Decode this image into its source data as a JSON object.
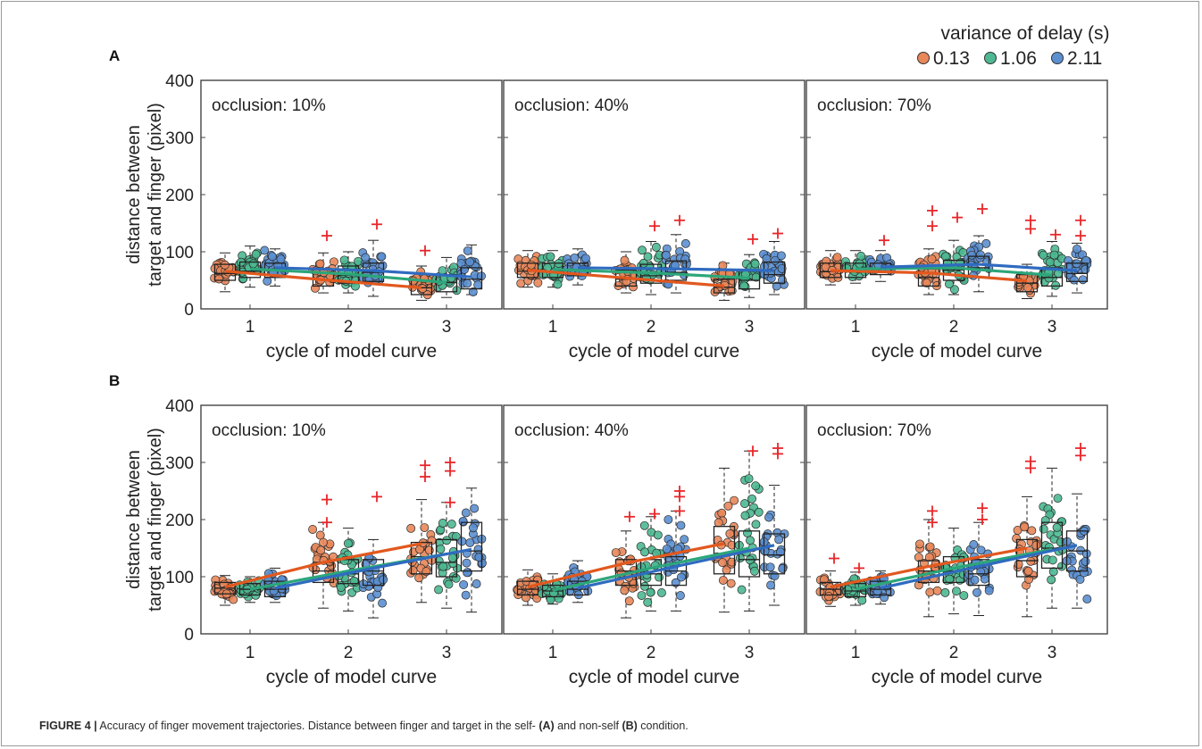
{
  "legend": {
    "title": "variance of delay (s)",
    "entries": [
      {
        "label": "0.13",
        "color": "#e8875a",
        "line_color": "#e2581e"
      },
      {
        "label": "1.06",
        "color": "#4db891",
        "line_color": "#2ca67a"
      },
      {
        "label": "2.11",
        "color": "#5b8fd0",
        "line_color": "#2f6bc0"
      }
    ]
  },
  "outlier_color": "#e8262a",
  "ylabel_lines": [
    "distance between",
    "target and finger (pixel)"
  ],
  "xlabel": "cycle of model curve",
  "caption": {
    "prefix": "FIGURE 4 |",
    "t1": " Accuracy of finger movement trajectories. Distance between finger and target in the self- ",
    "a": "(A)",
    "t2": " and non-self ",
    "b": "(B)",
    "t3": " condition."
  },
  "chart_data": [
    {
      "row": "A",
      "type": "box-scatter",
      "categories": [
        "1",
        "2",
        "3"
      ],
      "ylim": [
        0,
        400
      ],
      "yticks": [
        0,
        100,
        200,
        300,
        400
      ],
      "xlabel": "cycle of model curve",
      "ylabel": "distance between target and finger (pixel)",
      "panels": [
        {
          "title": "occlusion: 10%",
          "series": [
            {
              "name": "0.13",
              "means": [
                66,
                51,
                37
              ],
              "boxes": [
                [
                  50,
                  62,
                  78,
                  30,
                  98
                ],
                [
                  40,
                  51,
                  70,
                  28,
                  98
                ],
                [
                  25,
                  37,
                  50,
                  15,
                  75
                ]
              ],
              "outliers": [
                [],
                [
                  128
                ],
                [
                  102
                ]
              ]
            },
            {
              "name": "1.06",
              "means": [
                70,
                61,
                46
              ],
              "boxes": [
                [
                  55,
                  66,
                  82,
                  38,
                  110
                ],
                [
                  45,
                  59,
                  75,
                  28,
                  100
                ],
                [
                  30,
                  46,
                  60,
                  20,
                  90
                ]
              ],
              "outliers": [
                [],
                [],
                []
              ]
            },
            {
              "name": "2.11",
              "means": [
                72,
                67,
                56
              ],
              "boxes": [
                [
                  55,
                  67,
                  80,
                  40,
                  105
                ],
                [
                  48,
                  64,
                  80,
                  22,
                  120
                ],
                [
                  35,
                  52,
                  72,
                  25,
                  112
                ]
              ],
              "outliers": [
                [],
                [
                  148
                ],
                []
              ]
            }
          ]
        },
        {
          "title": "occlusion: 40%",
          "series": [
            {
              "name": "0.13",
              "means": [
                68,
                54,
                40
              ],
              "boxes": [
                [
                  55,
                  66,
                  80,
                  38,
                  102
                ],
                [
                  40,
                  52,
                  68,
                  28,
                  100
                ],
                [
                  28,
                  38,
                  52,
                  15,
                  80
                ]
              ],
              "outliers": [
                [],
                [],
                []
              ]
            },
            {
              "name": "1.06",
              "means": [
                69,
                63,
                54
              ],
              "boxes": [
                [
                  55,
                  66,
                  80,
                  38,
                  102
                ],
                [
                  45,
                  58,
                  78,
                  25,
                  118
                ],
                [
                  35,
                  50,
                  68,
                  20,
                  95
                ]
              ],
              "outliers": [
                [],
                [
                  145
                ],
                [
                  122
                ]
              ]
            },
            {
              "name": "2.11",
              "means": [
                72,
                70,
                67
              ],
              "boxes": [
                [
                  58,
                  68,
                  80,
                  42,
                  105
                ],
                [
                  50,
                  64,
                  84,
                  28,
                  130
                ],
                [
                  45,
                  60,
                  82,
                  25,
                  118
                ]
              ],
              "outliers": [
                [],
                [
                  155
                ],
                [
                  132
                ]
              ]
            }
          ]
        },
        {
          "title": "occlusion: 70%",
          "series": [
            {
              "name": "0.13",
              "means": [
                67,
                63,
                49
              ],
              "boxes": [
                [
                  55,
                  65,
                  80,
                  42,
                  102
                ],
                [
                  40,
                  55,
                  70,
                  25,
                  105
                ],
                [
                  30,
                  45,
                  60,
                  18,
                  78
                ]
              ],
              "outliers": [
                [],
                [
                  172,
                  145
                ],
                [
                  155,
                  140
                ]
              ]
            },
            {
              "name": "1.06",
              "means": [
                70,
                72,
                59
              ],
              "boxes": [
                [
                  55,
                  67,
                  80,
                  45,
                  102
                ],
                [
                  50,
                  68,
                  85,
                  25,
                  120
                ],
                [
                  40,
                  55,
                  72,
                  22,
                  118
                ]
              ],
              "outliers": [
                [],
                [
                  160
                ],
                [
                  130
                ]
              ]
            },
            {
              "name": "2.11",
              "means": [
                73,
                78,
                67
              ],
              "boxes": [
                [
                  60,
                  70,
                  80,
                  48,
                  102
                ],
                [
                  55,
                  72,
                  92,
                  30,
                  128
                ],
                [
                  48,
                  62,
                  80,
                  28,
                  115
                ]
              ],
              "outliers": [
                [
                  120
                ],
                [
                  175
                ],
                [
                  155,
                  128
                ]
              ]
            }
          ]
        }
      ]
    },
    {
      "row": "B",
      "type": "box-scatter",
      "categories": [
        "1",
        "2",
        "3"
      ],
      "ylim": [
        0,
        400
      ],
      "yticks": [
        0,
        100,
        200,
        300,
        400
      ],
      "xlabel": "cycle of model curve",
      "ylabel": "distance between target and finger (pixel)",
      "panels": [
        {
          "title": "occlusion: 10%",
          "series": [
            {
              "name": "0.13",
              "means": [
                82,
                125,
                158
              ],
              "boxes": [
                [
                  70,
                  80,
                  90,
                  50,
                  102
                ],
                [
                  90,
                  110,
                  125,
                  45,
                  195
                ],
                [
                  105,
                  135,
                  160,
                  55,
                  235
                ]
              ],
              "outliers": [
                [],
                [
                  235,
                  195
                ],
                [
                  295,
                  275
                ]
              ]
            },
            {
              "name": "1.06",
              "means": [
                78,
                110,
                140
              ],
              "boxes": [
                [
                  68,
                  78,
                  88,
                  55,
                  100
                ],
                [
                  88,
                  105,
                  130,
                  40,
                  185
                ],
                [
                  100,
                  125,
                  165,
                  45,
                  230
                ]
              ],
              "outliers": [
                [],
                [],
                [
                  300,
                  285,
                  230
                ]
              ]
            },
            {
              "name": "2.11",
              "means": [
                80,
                115,
                148
              ],
              "boxes": [
                [
                  65,
                  78,
                  92,
                  55,
                  115
                ],
                [
                  85,
                  110,
                  130,
                  28,
                  165
                ],
                [
                  110,
                  145,
                  195,
                  38,
                  255
                ]
              ],
              "outliers": [
                [],
                [
                  240
                ],
                []
              ]
            }
          ]
        },
        {
          "title": "occlusion: 40%",
          "series": [
            {
              "name": "0.13",
              "means": [
                82,
                124,
                158
              ],
              "boxes": [
                [
                  68,
                  78,
                  92,
                  50,
                  112
                ],
                [
                  85,
                  110,
                  130,
                  28,
                  180
                ],
                [
                  105,
                  140,
                  188,
                  38,
                  290
                ]
              ],
              "outliers": [
                [],
                [
                  205
                ],
                []
              ]
            },
            {
              "name": "1.06",
              "means": [
                76,
                115,
                150
              ],
              "boxes": [
                [
                  65,
                  75,
                  85,
                  52,
                  105
                ],
                [
                  85,
                  105,
                  130,
                  40,
                  205
                ],
                [
                  100,
                  130,
                  180,
                  40,
                  320
                ]
              ],
              "outliers": [
                [],
                [
                  210
                ],
                [
                  320
                ]
              ]
            },
            {
              "name": "2.11",
              "means": [
                80,
                118,
                155
              ],
              "boxes": [
                [
                  68,
                  78,
                  92,
                  55,
                  128
                ],
                [
                  85,
                  110,
                  135,
                  40,
                  215
                ],
                [
                  105,
                  138,
                  175,
                  50,
                  260
                ]
              ],
              "outliers": [
                [],
                [
                  250,
                  240,
                  215
                ],
                [
                  325,
                  315
                ]
              ]
            }
          ]
        },
        {
          "title": "occlusion: 70%",
          "series": [
            {
              "name": "0.13",
              "means": [
                82,
                118,
                150
              ],
              "boxes": [
                [
                  68,
                  78,
                  90,
                  48,
                  110
                ],
                [
                  90,
                  110,
                  128,
                  30,
                  200
                ],
                [
                  100,
                  128,
                  165,
                  30,
                  240
                ]
              ],
              "outliers": [
                [
                  132
                ],
                [
                  215,
                  195
                ],
                [
                  302,
                  290
                ]
              ]
            },
            {
              "name": "1.06",
              "means": [
                78,
                115,
                148
              ],
              "boxes": [
                [
                  65,
                  75,
                  88,
                  50,
                  108
                ],
                [
                  90,
                  110,
                  135,
                  35,
                  185
                ],
                [
                  115,
                  150,
                  195,
                  45,
                  290
                ]
              ],
              "outliers": [
                [
                  115
                ],
                [],
                []
              ]
            },
            {
              "name": "2.11",
              "means": [
                80,
                118,
                155
              ],
              "boxes": [
                [
                  68,
                  78,
                  92,
                  52,
                  110
                ],
                [
                  85,
                  105,
                  130,
                  32,
                  195
                ],
                [
                  110,
                  145,
                  180,
                  45,
                  245
                ]
              ],
              "outliers": [
                [],
                [
                  220,
                  200
                ],
                [
                  325,
                  312
                ]
              ]
            }
          ]
        }
      ]
    }
  ]
}
